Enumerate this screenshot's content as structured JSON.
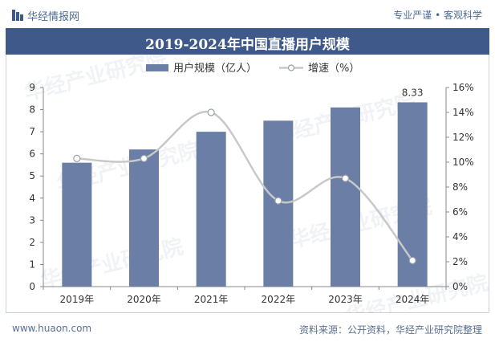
{
  "header": {
    "brand_name": "华经情报网",
    "tagline": "专业严谨 • 客观科学"
  },
  "footer": {
    "website": "www.huaon.com",
    "source": "资料来源：公开资料，华经产业研究院整理"
  },
  "watermark": {
    "text": "华经产业研究院"
  },
  "colors": {
    "title_bar": "#3f5a8a",
    "bar": "#6b7fa6",
    "line": "#c8c8c8",
    "marker_fill": "#ffffff",
    "marker_stroke": "#9aa0a8"
  },
  "chart_data": {
    "type": "bar",
    "title": "2019-2024年中国直播用户规模",
    "categories": [
      "2019年",
      "2020年",
      "2021年",
      "2022年",
      "2023年",
      "2024年"
    ],
    "series": [
      {
        "name": "用户规模（亿人）",
        "type": "bar",
        "axis": "left",
        "values": [
          5.6,
          6.2,
          7.0,
          7.5,
          8.1,
          8.33
        ]
      },
      {
        "name": "增速（%）",
        "type": "line",
        "axis": "right",
        "values": [
          10.3,
          10.3,
          14.0,
          6.9,
          8.7,
          2.1
        ]
      }
    ],
    "data_labels": [
      {
        "category": "2024年",
        "text": "8.33"
      }
    ],
    "y_left": {
      "min": 0,
      "max": 9,
      "ticks": [
        "0",
        "1",
        "2",
        "3",
        "4",
        "5",
        "6",
        "7",
        "8",
        "9"
      ]
    },
    "y_right": {
      "min": 0,
      "max": 16,
      "ticks": [
        "0%",
        "2%",
        "4%",
        "6%",
        "8%",
        "10%",
        "12%",
        "14%",
        "16%"
      ]
    },
    "grid": false,
    "legend_position": "top-center"
  }
}
